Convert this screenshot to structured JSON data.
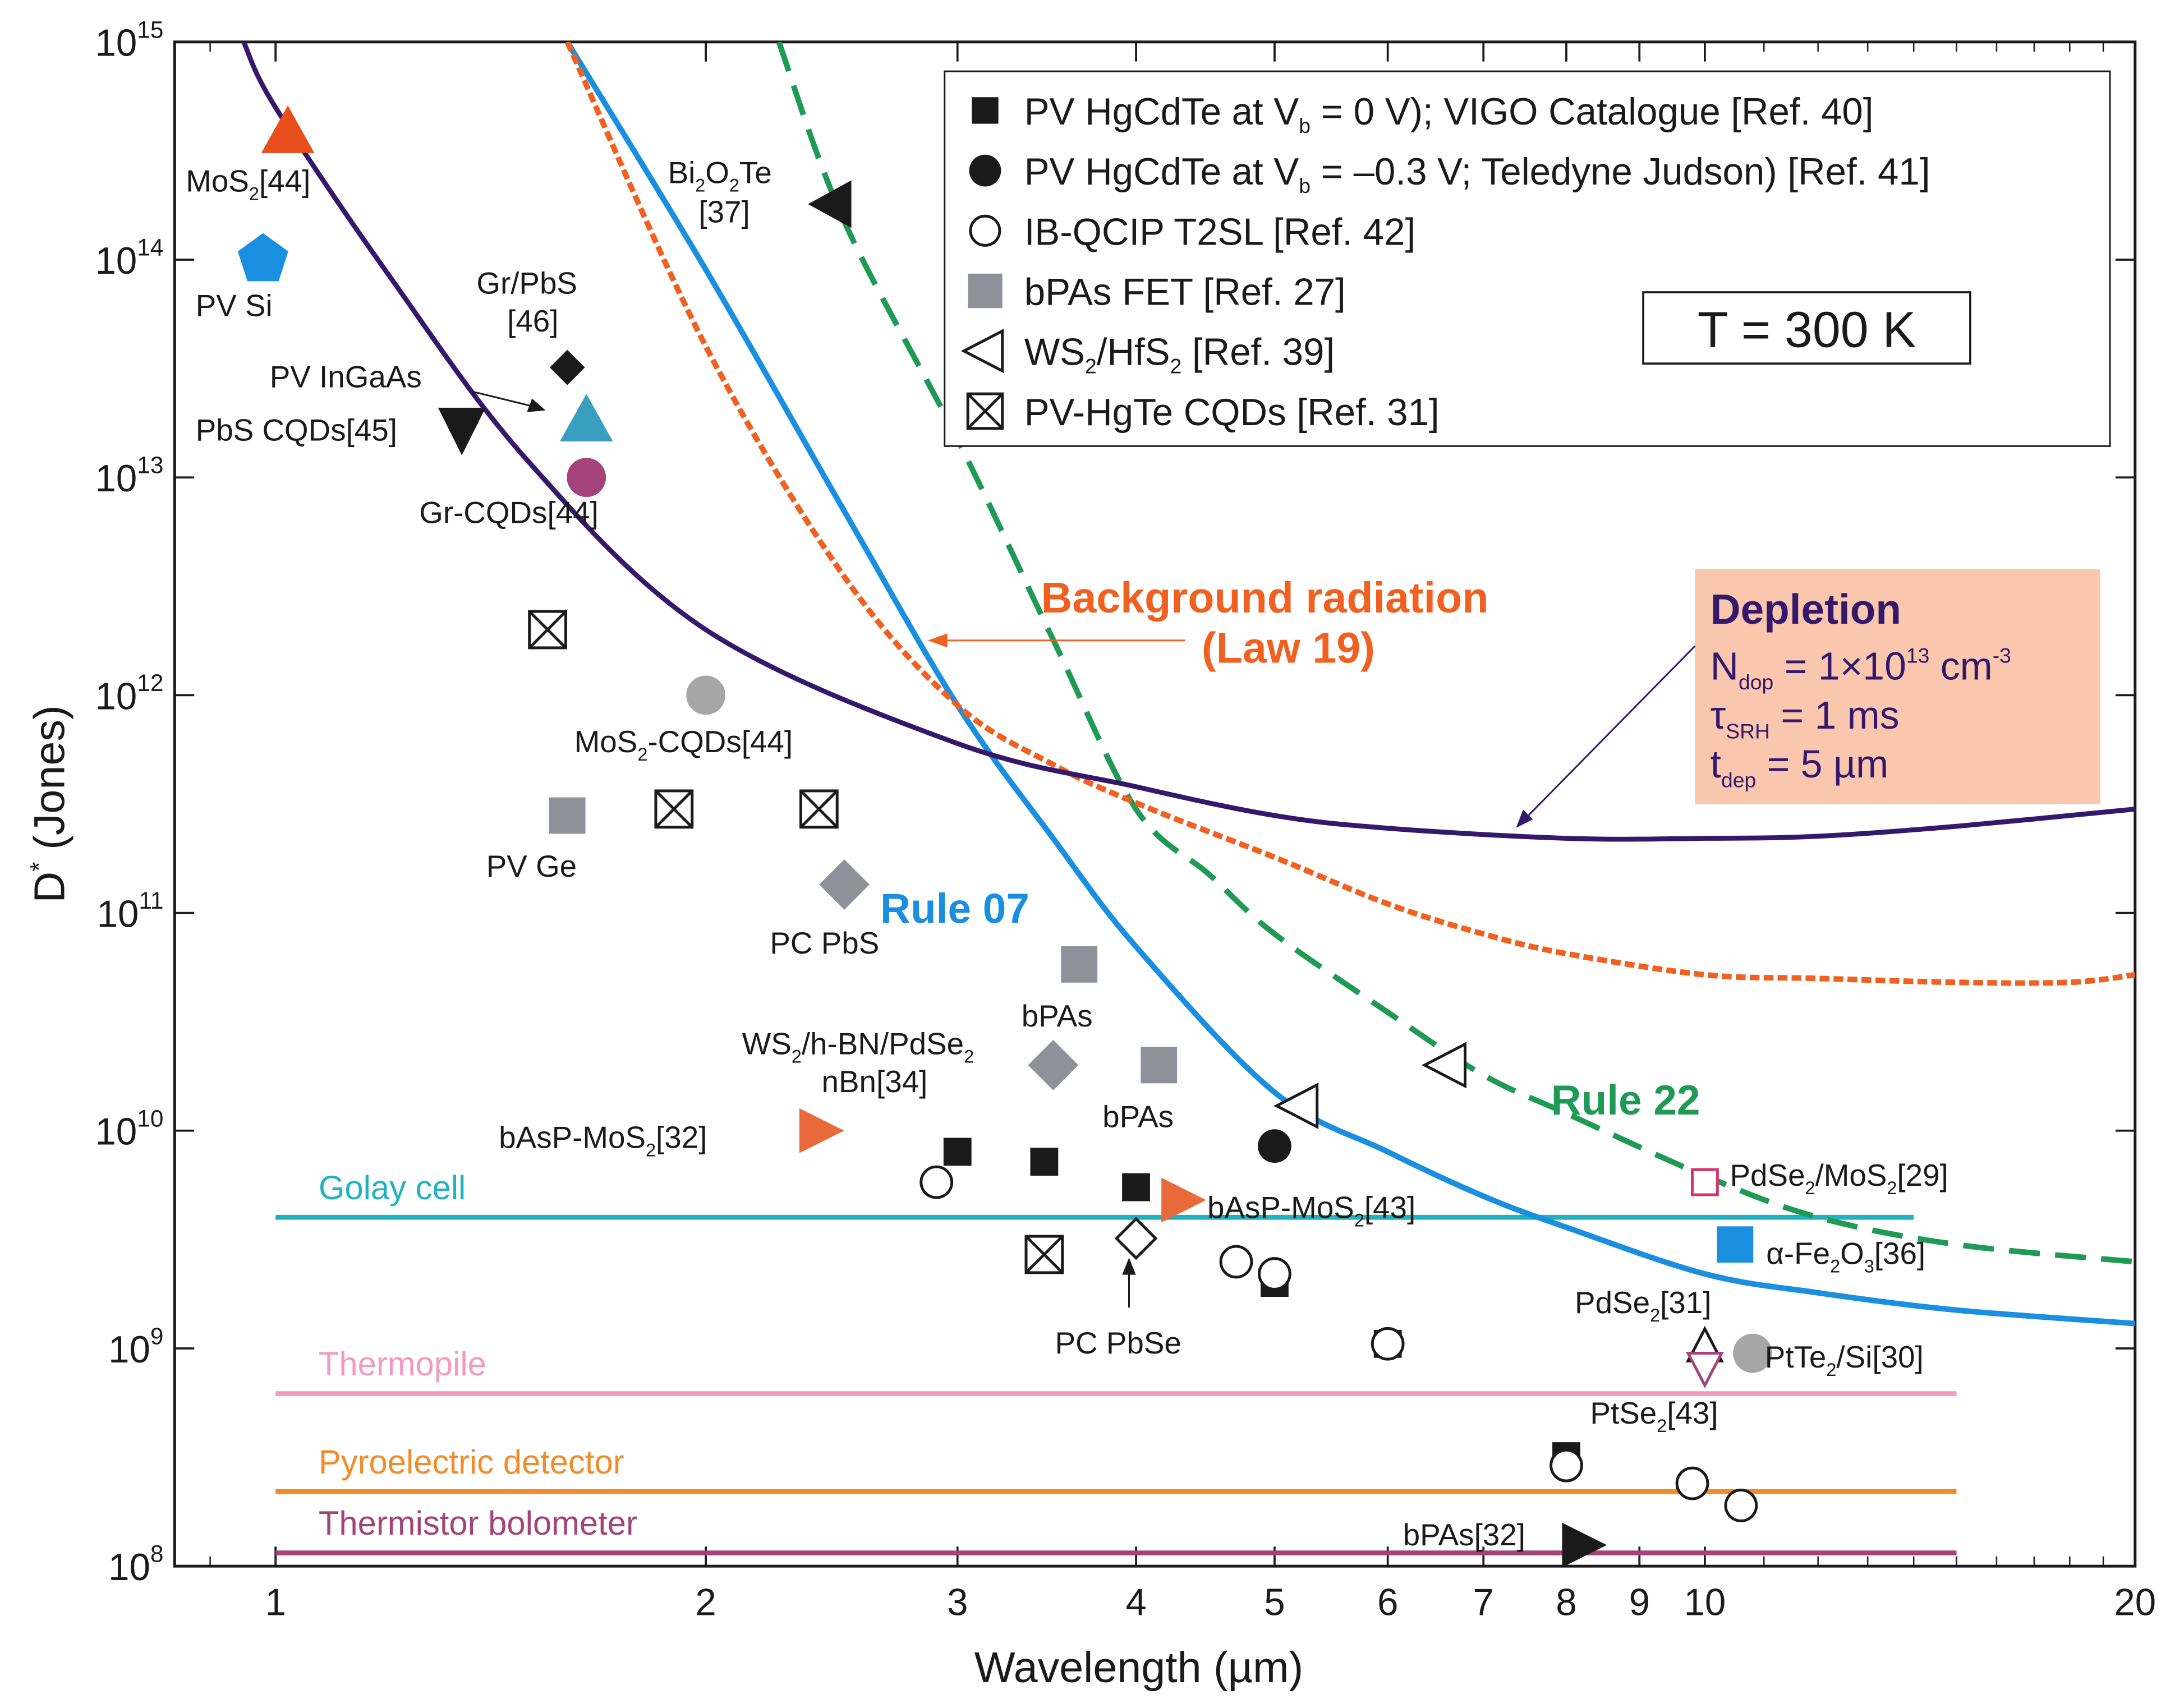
{
  "chart_data": {
    "type": "scatter",
    "title": "",
    "xlabel": "Wavelength (µm)",
    "ylabel": "D* (Jones)",
    "ylabel_main": "D",
    "ylabel_sup": "*",
    "ylabel_rest": " (Jones)",
    "xscale": "log",
    "yscale": "log",
    "xlim": [
      0.85,
      20
    ],
    "ylim": [
      100000000.0,
      1000000000000000.0
    ],
    "xticks": [
      {
        "value": 1,
        "label": "1"
      },
      {
        "value": 2,
        "label": "2"
      },
      {
        "value": 3,
        "label": "3"
      },
      {
        "value": 4,
        "label": "4"
      },
      {
        "value": 5,
        "label": "5"
      },
      {
        "value": 6,
        "label": "6"
      },
      {
        "value": 7,
        "label": "7"
      },
      {
        "value": 8,
        "label": "8"
      },
      {
        "value": 9,
        "label": "9"
      },
      {
        "value": 10,
        "label": "10"
      },
      {
        "value": 20,
        "label": "20"
      }
    ],
    "yticks": [
      {
        "exp": 8,
        "base": "10",
        "sup": "8"
      },
      {
        "exp": 9,
        "base": "10",
        "sup": "9"
      },
      {
        "exp": 10,
        "base": "10",
        "sup": "10"
      },
      {
        "exp": 11,
        "base": "10",
        "sup": "11"
      },
      {
        "exp": 12,
        "base": "10",
        "sup": "12"
      },
      {
        "exp": 13,
        "base": "10",
        "sup": "13"
      },
      {
        "exp": 14,
        "base": "10",
        "sup": "14"
      },
      {
        "exp": 15,
        "base": "10",
        "sup": "15"
      }
    ],
    "temperature_box": "T = 300 K",
    "legend_position": "top-right",
    "legend": [
      {
        "symbol": "square-filled",
        "color": "#1a1a1a",
        "parts": [
          {
            "t": "PV HgCdTe at V"
          },
          {
            "t": "b",
            "s": "sub"
          },
          {
            "t": " = 0 V); VIGO Catalogue [Ref. 40]"
          }
        ]
      },
      {
        "symbol": "circle-filled",
        "color": "#1a1a1a",
        "parts": [
          {
            "t": "PV HgCdTe at V"
          },
          {
            "t": "b",
            "s": "sub"
          },
          {
            "t": " = –0.3 V; Teledyne Judson) [Ref. 41]"
          }
        ]
      },
      {
        "symbol": "circle-open",
        "color": "#1a1a1a",
        "parts": [
          {
            "t": "IB-QCIP T2SL [Ref. 42]"
          }
        ]
      },
      {
        "symbol": "square-gray",
        "color": "#8e9199",
        "parts": [
          {
            "t": "bPAs FET [Ref. 27]"
          }
        ]
      },
      {
        "symbol": "triangle-left-open",
        "color": "#1a1a1a",
        "parts": [
          {
            "t": "WS"
          },
          {
            "t": "2",
            "s": "sub"
          },
          {
            "t": "/HfS"
          },
          {
            "t": "2",
            "s": "sub"
          },
          {
            "t": " [Ref. 39]"
          }
        ]
      },
      {
        "symbol": "square-x",
        "color": "#1a1a1a",
        "parts": [
          {
            "t": "PV-HgTe CQDs [Ref. 31]"
          }
        ]
      }
    ],
    "series": [
      {
        "name": "PV HgCdTe at Vb = 0 V (VIGO)",
        "marker": "square-filled",
        "color": "#1a1a1a",
        "points": [
          [
            3.0,
            8000000000.0
          ],
          [
            3.45,
            7200000000.0
          ],
          [
            4.0,
            5500000000.0
          ],
          [
            5.0,
            2000000000.0
          ],
          [
            6.0,
            1050000000.0
          ],
          [
            8.0,
            320000000.0
          ]
        ]
      },
      {
        "name": "PV HgCdTe at Vb = -0.3 V (Teledyne Judson)",
        "marker": "circle-filled",
        "color": "#1a1a1a",
        "points": [
          [
            5.0,
            8500000000.0
          ]
        ]
      },
      {
        "name": "IB-QCIP T2SL",
        "marker": "circle-open",
        "color": "#1a1a1a",
        "points": [
          [
            2.9,
            5800000000.0
          ],
          [
            4.7,
            2500000000.0
          ],
          [
            5.0,
            2200000000.0
          ],
          [
            6.0,
            1050000000.0
          ],
          [
            8.0,
            290000000.0
          ],
          [
            9.8,
            240000000.0
          ],
          [
            10.6,
            190000000.0
          ]
        ]
      },
      {
        "name": "bPAs FET",
        "marker": "square-gray",
        "color": "#8e9199",
        "points": [
          [
            3.65,
            58000000000.0
          ],
          [
            4.15,
            20000000000.0
          ]
        ]
      },
      {
        "name": "WS2/HfS2",
        "marker": "triangle-left-open",
        "color": "#1a1a1a",
        "points": [
          [
            5.2,
            13000000000.0
          ],
          [
            6.6,
            20000000000.0
          ]
        ]
      },
      {
        "name": "PV-HgTe CQDs",
        "marker": "square-x",
        "color": "#1a1a1a",
        "points": [
          [
            1.55,
            2000000000000.0
          ],
          [
            1.9,
            300000000000.0
          ],
          [
            2.4,
            300000000000.0
          ],
          [
            3.45,
            2700000000.0
          ]
        ]
      }
    ],
    "annotated_points": [
      {
        "label": "MoS2[44]",
        "x": 1.02,
        "y": 380000000000000.0,
        "marker": "triangle-up",
        "color": "#e84e1b"
      },
      {
        "label": "PV Si",
        "x": 0.98,
        "y": 100000000000000.0,
        "marker": "pentagon",
        "color": "#1a8fe0"
      },
      {
        "label": "Bi2O2Te [37]",
        "x": 2.45,
        "y": 180000000000000.0,
        "marker": "triangle-left",
        "color": "#1a1a1a"
      },
      {
        "label": "Gr/PbS [46]",
        "x": 1.6,
        "y": 32000000000000.0,
        "marker": "diamond",
        "color": "#1a1a1a"
      },
      {
        "label": "PV InGaAs",
        "x": 1.65,
        "y": 18000000000000.0,
        "marker": "triangle-up",
        "color": "#3a9fbf"
      },
      {
        "label": "PbS CQDs[45]",
        "x": 1.35,
        "y": 16500000000000.0,
        "marker": "triangle-down",
        "color": "#1a1a1a"
      },
      {
        "label": "Gr-CQDs[44]",
        "x": 1.65,
        "y": 10000000000000.0,
        "marker": "circle",
        "color": "#a3437a"
      },
      {
        "label": "MoS2-CQDs[44]",
        "x": 2.0,
        "y": 1000000000000.0,
        "marker": "circle",
        "color": "#a6a6a6"
      },
      {
        "label": "PV Ge",
        "x": 1.6,
        "y": 280000000000.0,
        "marker": "square",
        "color": "#8e9199"
      },
      {
        "label": "PC PbS",
        "x": 2.5,
        "y": 135000000000.0,
        "marker": "diamond",
        "color": "#8e9199"
      },
      {
        "label": "WS2/h-BN/PdSe2 nBn[34]",
        "x": 3.5,
        "y": 20000000000.0,
        "marker": "diamond",
        "color": "#8e9199"
      },
      {
        "label": "bAsP-MoS2[32]",
        "x": 2.4,
        "y": 10000000000.0,
        "marker": "triangle-right",
        "color": "#e86a3a"
      },
      {
        "label": "bAsP-MoS2[43]",
        "x": 4.3,
        "y": 4800000000.0,
        "marker": "triangle-right",
        "color": "#e86a3a"
      },
      {
        "label": "PC PbSe",
        "x": 4.0,
        "y": 3200000000.0,
        "marker": "diamond-open",
        "color": "#1a1a1a"
      },
      {
        "label": "PdSe2/MoS2[29]",
        "x": 10.0,
        "y": 5800000000.0,
        "marker": "square-open",
        "color": "#d6336c"
      },
      {
        "label": "α-Fe2O3[36]",
        "x": 10.5,
        "y": 3000000000.0,
        "marker": "square",
        "color": "#1a8fe0"
      },
      {
        "label": "PdSe2[31]",
        "x": 10.0,
        "y": 1000000000.0,
        "marker": "triangle-up-open",
        "color": "#1a1a1a"
      },
      {
        "label": "PtTe2/Si[30]",
        "x": 10.8,
        "y": 950000000.0,
        "marker": "circle",
        "color": "#a6a6a6"
      },
      {
        "label": "PtSe2[43]",
        "x": 10.0,
        "y": 820000000.0,
        "marker": "triangle-down-open",
        "color": "#a3437a"
      },
      {
        "label": "bPAs[32]",
        "x": 8.2,
        "y": 125000000.0,
        "marker": "triangle-right",
        "color": "#1a1a1a"
      }
    ],
    "reference_lines": [
      {
        "name": "Golay cell",
        "y": 4000000000.0,
        "x_range": [
          1.0,
          14.0
        ],
        "color": "#1fb3c1"
      },
      {
        "name": "Thermopile",
        "y": 620000000.0,
        "x_range": [
          1.0,
          15.0
        ],
        "color": "#f29ac2"
      },
      {
        "name": "Pyroelectric detector",
        "y": 220000000.0,
        "x_range": [
          1.0,
          15.0
        ],
        "color": "#f28c28"
      },
      {
        "name": "Thermistor bolometer",
        "y": 115000000.0,
        "x_range": [
          1.0,
          15.0
        ],
        "color": "#a3437a"
      }
    ],
    "curves": [
      {
        "name": "Rule 07",
        "style": "solid",
        "color": "#1a8fe0",
        "points": [
          [
            1.6,
            1000000000000000.0
          ],
          [
            2.0,
            90000000000000.0
          ],
          [
            2.5,
            7000000000000.0
          ],
          [
            3.0,
            900000000000.0
          ],
          [
            3.5,
            220000000000.0
          ],
          [
            4.0,
            70000000000.0
          ],
          [
            5.0,
            15000000000.0
          ],
          [
            6.0,
            8000000000.0
          ],
          [
            7.0,
            5000000000.0
          ],
          [
            8.0,
            3600000000.0
          ],
          [
            10.0,
            2200000000.0
          ],
          [
            12.0,
            1800000000.0
          ],
          [
            15.0,
            1500000000.0
          ],
          [
            20.0,
            1300000000.0
          ]
        ]
      },
      {
        "name": "Rule 22",
        "style": "dashed",
        "color": "#1f9a55",
        "points": [
          [
            2.25,
            1000000000000000.0
          ],
          [
            2.5,
            150000000000000.0
          ],
          [
            3.0,
            15000000000000.0
          ],
          [
            3.5,
            1800000000000.0
          ],
          [
            4.0,
            300000000000.0
          ],
          [
            4.5,
            150000000000.0
          ],
          [
            5.0,
            80000000000.0
          ],
          [
            6.0,
            35000000000.0
          ],
          [
            7.0,
            18000000000.0
          ],
          [
            8.0,
            12000000000.0
          ],
          [
            10.0,
            6200000000.0
          ],
          [
            12.0,
            4000000000.0
          ],
          [
            15.0,
            3000000000.0
          ],
          [
            20.0,
            2500000000.0
          ]
        ]
      },
      {
        "name": "Background radiation (Law 19)",
        "style": "dotted",
        "color": "#f06020",
        "points": [
          [
            1.6,
            1000000000000000.0
          ],
          [
            2.0,
            40000000000000.0
          ],
          [
            2.5,
            3500000000000.0
          ],
          [
            3.0,
            900000000000.0
          ],
          [
            3.5,
            480000000000.0
          ],
          [
            4.0,
            320000000000.0
          ],
          [
            5.0,
            180000000000.0
          ],
          [
            6.0,
            110000000000.0
          ],
          [
            7.0,
            80000000000.0
          ],
          [
            8.0,
            65000000000.0
          ],
          [
            10.0,
            52000000000.0
          ],
          [
            12.0,
            50000000000.0
          ],
          [
            15.0,
            48000000000.0
          ],
          [
            18.0,
            48000000000.0
          ],
          [
            20.0,
            52000000000.0
          ]
        ]
      },
      {
        "name": "Depletion",
        "style": "solid",
        "color": "#35176b",
        "points": [
          [
            0.95,
            1000000000000000.0
          ],
          [
            1.0,
            500000000000000.0
          ],
          [
            1.2,
            85000000000000.0
          ],
          [
            1.5,
            12000000000000.0
          ],
          [
            2.0,
            2000000000000.0
          ],
          [
            3.0,
            600000000000.0
          ],
          [
            4.0,
            380000000000.0
          ],
          [
            5.0,
            280000000000.0
          ],
          [
            6.0,
            245000000000.0
          ],
          [
            8.0,
            220000000000.0
          ],
          [
            10.0,
            220000000000.0
          ],
          [
            12.0,
            225000000000.0
          ],
          [
            15.0,
            250000000000.0
          ],
          [
            20.0,
            300000000000.0
          ]
        ]
      }
    ],
    "curve_labels": {
      "rule07": "Rule 07",
      "rule22": "Rule 22",
      "background_line1": "Background radiation",
      "background_line2": "(Law 19)"
    },
    "depletion_box": {
      "title": "Depletion",
      "ndop": {
        "main": "N",
        "sub": "dop",
        "eq": " = 1×10",
        "sup": "13",
        "unit": " cm",
        "unit_sup": "-3"
      },
      "tau": {
        "main": "τ",
        "sub": "SRH",
        "eq": " = 1 ms"
      },
      "tdep": {
        "main": "t",
        "sub": "dep",
        "eq": " = 5 µm"
      }
    },
    "colors": {
      "depletion_box_bg": "#f9c7ad",
      "background_label": "#f06020",
      "rule07_label": "#1a8fe0",
      "rule22_label": "#1f9a55",
      "depletion_text": "#35176b"
    }
  }
}
